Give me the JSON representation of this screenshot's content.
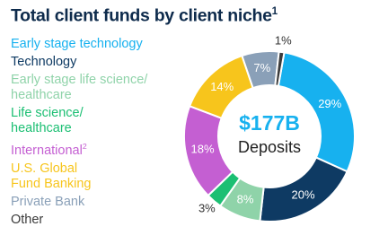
{
  "chart_data": {
    "type": "donut",
    "title": "Total client funds by client niche",
    "title_note": "1",
    "center_label": "$177B",
    "center_sublabel": "Deposits",
    "categories": [
      "Early stage technology",
      "Technology",
      "Early stage life science/\nhealthcare",
      "Life science/\nhealthcare",
      "International",
      "U.S. Global\nFund Banking",
      "Private Bank",
      "Other"
    ],
    "legend_notes": [
      null,
      null,
      null,
      null,
      "2",
      null,
      null,
      null
    ],
    "values": [
      29,
      20,
      8,
      3,
      18,
      14,
      7,
      1
    ],
    "value_labels": [
      "29%",
      "20%",
      "8%",
      "3%",
      "18%",
      "14%",
      "7%",
      "1%"
    ],
    "colors": [
      "#17b1ef",
      "#0e3a63",
      "#8fd3a9",
      "#1cbf73",
      "#c45fd2",
      "#f7c51c",
      "#8aa0b8",
      "#3b3b3b"
    ]
  }
}
